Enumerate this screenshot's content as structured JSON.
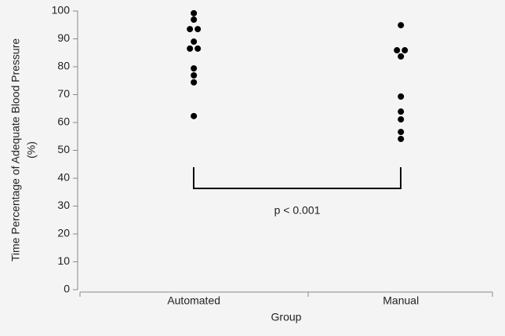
{
  "chart_data": {
    "type": "strip",
    "ylabel": [
      "Time Percentage of Adequate Blood Pressure",
      "(%)"
    ],
    "xlabel": "Group",
    "categories": [
      "Automated",
      "Manual"
    ],
    "values": [
      [
        99.2,
        96.9,
        93.5,
        93.5,
        89.0,
        86.5,
        86.5,
        79.4,
        76.9,
        74.4,
        62.3
      ],
      [
        94.9,
        85.9,
        85.9,
        83.7,
        69.3,
        63.9,
        61.1,
        56.6,
        54.1
      ]
    ],
    "color": "#000000",
    "ylim": [
      0,
      100
    ],
    "yticks": [
      0,
      10,
      20,
      30,
      40,
      50,
      60,
      70,
      80,
      90,
      100
    ],
    "annotation": "p < 0.001"
  }
}
